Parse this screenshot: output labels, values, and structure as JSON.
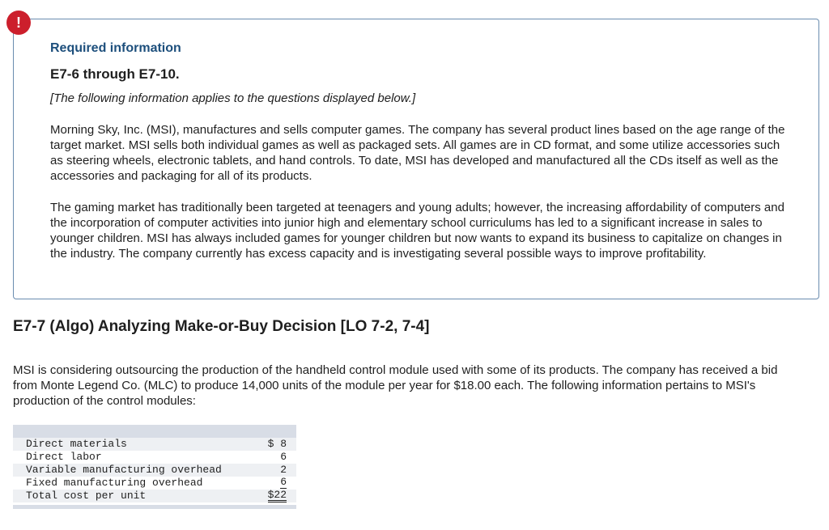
{
  "alert": {
    "icon": "exclamation-icon",
    "glyph": "!",
    "color": "#cc1f2c"
  },
  "info": {
    "heading": "Required information",
    "range": "E7-6 through E7-10.",
    "note": "[The following information applies to the questions displayed below.]",
    "paragraphs": [
      "Morning Sky, Inc. (MSI), manufactures and sells computer games. The company has several product lines based on the age range of the target market. MSI sells both individual games as well as packaged sets. All games are in CD format, and some utilize accessories such as steering wheels, electronic tablets, and hand controls. To date, MSI has developed and manufactured all the CDs itself as well as the accessories and packaging for all of its products.",
      "The gaming market has traditionally been targeted at teenagers and young adults; however, the increasing affordability of computers and the incorporation of computer activities into junior high and elementary school curriculums has led to a significant increase in sales to younger children. MSI has always included games for younger children but now wants to expand its business to capitalize on changes in the industry. The company currently has excess capacity and is investigating several possible ways to improve profitability."
    ]
  },
  "section": {
    "title": "E7-7 (Algo) Analyzing Make-or-Buy Decision [LO 7-2, 7-4]",
    "question": "MSI is considering outsourcing the production of the handheld control module used with some of its products. The company has received a bid from Monte Legend Co. (MLC) to produce 14,000 units of the module per year for $18.00 each. The following information pertains to MSI's production of the control modules:"
  },
  "cost_table": {
    "rows": [
      {
        "label": "Direct materials",
        "value": "$ 8"
      },
      {
        "label": "Direct labor",
        "value": "6"
      },
      {
        "label": "Variable manufacturing overhead",
        "value": "2"
      },
      {
        "label": "Fixed manufacturing overhead",
        "value": "6"
      },
      {
        "label": "Total cost per unit",
        "value": "$22"
      }
    ]
  }
}
